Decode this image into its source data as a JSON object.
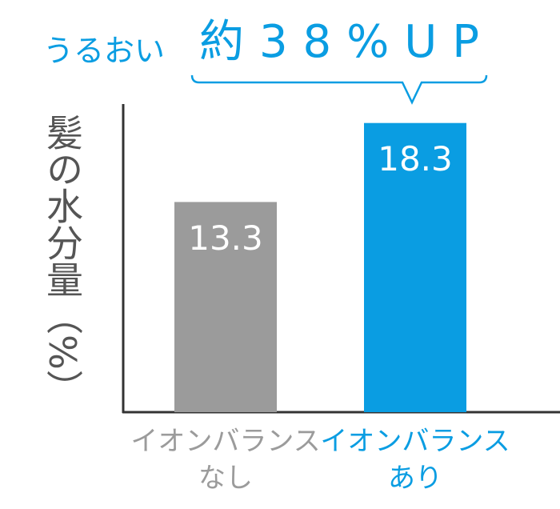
{
  "chart_data": {
    "type": "bar",
    "y_label": "髪の水分量（%）",
    "annotation_prefix": "うるおい",
    "annotation": "約38%UP",
    "categories": [
      [
        "イオンバランス",
        "なし"
      ],
      [
        "イオンバランス",
        "あり"
      ]
    ],
    "values": [
      13.3,
      18.3
    ],
    "colors": [
      "#9b9b9b",
      "#0a9de2"
    ],
    "label_colors": [
      "#9b9b9b",
      "#0a9de2"
    ],
    "ylim": [
      0,
      19.5
    ]
  }
}
